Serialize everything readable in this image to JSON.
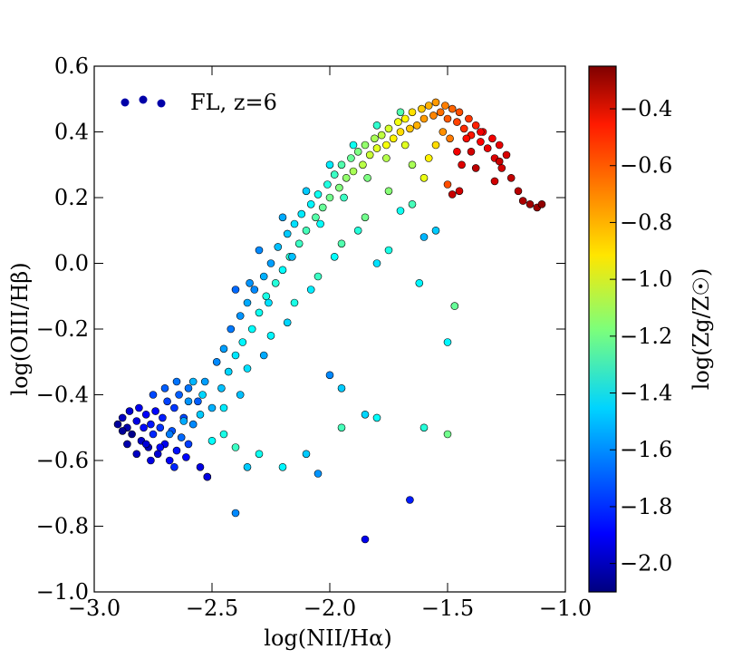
{
  "chart_data": {
    "type": "scatter",
    "xlabel": "log(NII/Hα)",
    "ylabel": "log(OIII/Hβ)",
    "xlim": [
      -3.0,
      -1.0
    ],
    "ylim": [
      -1.0,
      0.6
    ],
    "xticks": [
      "−3.0",
      "−2.5",
      "−2.0",
      "−1.5",
      "−1.0"
    ],
    "yticks": [
      "−1.0",
      "−0.8",
      "−0.6",
      "−0.4",
      "−0.2",
      "0.0",
      "0.2",
      "0.4",
      "0.6"
    ],
    "grid": false,
    "legend": {
      "label": "FL, z=6",
      "placement": "top-left"
    },
    "colorbar": {
      "label": "log(Zg/Z☉)",
      "range": [
        -2.1,
        -0.25
      ],
      "ticks": [
        "−2.0",
        "−1.8",
        "−1.6",
        "−1.4",
        "−1.2",
        "−1.0",
        "−0.8",
        "−0.6",
        "−0.4"
      ],
      "colormap": "jet"
    },
    "series": [
      {
        "points": [
          [
            -2.9,
            -0.49,
            -2.05
          ],
          [
            -2.88,
            -0.47,
            -1.98
          ],
          [
            -2.86,
            -0.5,
            -2.02
          ],
          [
            -2.85,
            -0.45,
            -1.95
          ],
          [
            -2.84,
            -0.52,
            -2.08
          ],
          [
            -2.82,
            -0.48,
            -1.92
          ],
          [
            -2.81,
            -0.44,
            -1.9
          ],
          [
            -2.8,
            -0.54,
            -1.97
          ],
          [
            -2.79,
            -0.5,
            -1.85
          ],
          [
            -2.78,
            -0.46,
            -1.88
          ],
          [
            -2.77,
            -0.56,
            -2.0
          ],
          [
            -2.76,
            -0.49,
            -1.83
          ],
          [
            -2.75,
            -0.52,
            -1.8
          ],
          [
            -2.74,
            -0.45,
            -1.86
          ],
          [
            -2.73,
            -0.58,
            -1.95
          ],
          [
            -2.72,
            -0.5,
            -1.78
          ],
          [
            -2.71,
            -0.47,
            -1.82
          ],
          [
            -2.7,
            -0.55,
            -1.9
          ],
          [
            -2.69,
            -0.42,
            -1.75
          ],
          [
            -2.68,
            -0.6,
            -1.88
          ],
          [
            -2.67,
            -0.51,
            -1.72
          ],
          [
            -2.66,
            -0.44,
            -1.77
          ],
          [
            -2.65,
            -0.57,
            -1.84
          ],
          [
            -2.64,
            -0.4,
            -1.7
          ],
          [
            -2.63,
            -0.53,
            -1.68
          ],
          [
            -2.62,
            -0.47,
            -1.74
          ],
          [
            -2.61,
            -0.59,
            -1.86
          ],
          [
            -2.6,
            -0.38,
            -1.66
          ],
          [
            -2.58,
            -0.49,
            -1.62
          ],
          [
            -2.56,
            -0.42,
            -1.7
          ],
          [
            -2.55,
            -0.62,
            -1.92
          ],
          [
            -2.53,
            -0.36,
            -1.58
          ],
          [
            -2.52,
            -0.65,
            -1.9
          ],
          [
            -2.5,
            -0.44,
            -1.55
          ],
          [
            -2.48,
            -0.3,
            -1.62
          ],
          [
            -2.46,
            -0.38,
            -1.52
          ],
          [
            -2.45,
            -0.26,
            -1.58
          ],
          [
            -2.43,
            -0.33,
            -1.48
          ],
          [
            -2.42,
            -0.2,
            -1.65
          ],
          [
            -2.4,
            -0.28,
            -1.45
          ],
          [
            -2.38,
            -0.16,
            -1.6
          ],
          [
            -2.37,
            -0.24,
            -1.42
          ],
          [
            -2.35,
            -0.12,
            -1.56
          ],
          [
            -2.33,
            -0.2,
            -1.4
          ],
          [
            -2.32,
            -0.08,
            -1.62
          ],
          [
            -2.3,
            -0.15,
            -1.38
          ],
          [
            -2.28,
            -0.04,
            -1.55
          ],
          [
            -2.27,
            -0.1,
            -1.36
          ],
          [
            -2.25,
            0.0,
            -1.58
          ],
          [
            -2.23,
            -0.06,
            -1.34
          ],
          [
            -2.22,
            0.05,
            -1.52
          ],
          [
            -2.2,
            -0.02,
            -1.4
          ],
          [
            -2.18,
            0.09,
            -1.5
          ],
          [
            -2.17,
            0.02,
            -1.32
          ],
          [
            -2.15,
            0.12,
            -1.46
          ],
          [
            -2.13,
            0.06,
            -1.3
          ],
          [
            -2.12,
            0.15,
            -1.44
          ],
          [
            -2.1,
            0.1,
            -1.28
          ],
          [
            -2.08,
            0.18,
            -1.42
          ],
          [
            -2.06,
            0.14,
            -1.25
          ],
          [
            -2.05,
            0.21,
            -1.38
          ],
          [
            -2.03,
            0.17,
            -1.22
          ],
          [
            -2.01,
            0.24,
            -1.35
          ],
          [
            -2.0,
            0.2,
            -1.2
          ],
          [
            -1.98,
            0.27,
            -1.3
          ],
          [
            -1.96,
            0.23,
            -1.17
          ],
          [
            -1.95,
            0.3,
            -1.26
          ],
          [
            -1.93,
            0.26,
            -1.14
          ],
          [
            -1.91,
            0.32,
            -1.22
          ],
          [
            -1.9,
            0.28,
            -1.1
          ],
          [
            -1.88,
            0.34,
            -1.18
          ],
          [
            -1.86,
            0.3,
            -1.07
          ],
          [
            -1.85,
            0.36,
            -1.14
          ],
          [
            -1.83,
            0.33,
            -1.04
          ],
          [
            -1.81,
            0.38,
            -1.1
          ],
          [
            -1.8,
            0.35,
            -1.0
          ],
          [
            -1.78,
            0.39,
            -1.06
          ],
          [
            -1.76,
            0.36,
            -0.96
          ],
          [
            -1.75,
            0.41,
            -1.02
          ],
          [
            -1.73,
            0.38,
            -0.92
          ],
          [
            -1.71,
            0.43,
            -0.97
          ],
          [
            -1.7,
            0.4,
            -0.88
          ],
          [
            -1.68,
            0.44,
            -0.93
          ],
          [
            -1.66,
            0.41,
            -0.84
          ],
          [
            -1.65,
            0.46,
            -0.89
          ],
          [
            -1.63,
            0.42,
            -0.8
          ],
          [
            -1.61,
            0.47,
            -0.85
          ],
          [
            -1.6,
            0.44,
            -0.76
          ],
          [
            -1.58,
            0.48,
            -0.8
          ],
          [
            -1.56,
            0.45,
            -0.72
          ],
          [
            -1.55,
            0.49,
            -0.76
          ],
          [
            -1.53,
            0.46,
            -0.68
          ],
          [
            -1.51,
            0.48,
            -0.71
          ],
          [
            -1.5,
            0.44,
            -0.64
          ],
          [
            -1.48,
            0.47,
            -0.66
          ],
          [
            -1.46,
            0.43,
            -0.6
          ],
          [
            -1.45,
            0.46,
            -0.62
          ],
          [
            -1.43,
            0.41,
            -0.56
          ],
          [
            -1.41,
            0.44,
            -0.58
          ],
          [
            -1.4,
            0.39,
            -0.52
          ],
          [
            -1.38,
            0.42,
            -0.54
          ],
          [
            -1.36,
            0.37,
            -0.48
          ],
          [
            -1.35,
            0.4,
            -0.5
          ],
          [
            -1.33,
            0.35,
            -0.45
          ],
          [
            -1.31,
            0.38,
            -0.46
          ],
          [
            -1.3,
            0.32,
            -0.42
          ],
          [
            -1.28,
            0.36,
            -0.44
          ],
          [
            -1.27,
            0.29,
            -0.4
          ],
          [
            -1.25,
            0.33,
            -0.41
          ],
          [
            -1.23,
            0.26,
            -0.37
          ],
          [
            -1.2,
            0.22,
            -0.35
          ],
          [
            -1.18,
            0.19,
            -0.33
          ],
          [
            -1.15,
            0.18,
            -0.31
          ],
          [
            -1.12,
            0.17,
            -0.3
          ],
          [
            -1.1,
            0.18,
            -0.28
          ],
          [
            -2.4,
            -0.08,
            -1.68
          ],
          [
            -2.3,
            0.04,
            -1.62
          ],
          [
            -2.2,
            0.14,
            -1.56
          ],
          [
            -2.1,
            0.22,
            -1.5
          ],
          [
            -2.0,
            0.3,
            -1.44
          ],
          [
            -1.9,
            0.36,
            -1.38
          ],
          [
            -1.8,
            0.42,
            -1.32
          ],
          [
            -1.7,
            0.46,
            -1.26
          ],
          [
            -2.35,
            -0.32,
            -1.46
          ],
          [
            -2.25,
            -0.22,
            -1.42
          ],
          [
            -2.15,
            -0.12,
            -1.36
          ],
          [
            -2.05,
            -0.04,
            -1.3
          ],
          [
            -1.95,
            0.06,
            -1.26
          ],
          [
            -1.85,
            0.14,
            -1.2
          ],
          [
            -1.75,
            0.22,
            -1.16
          ],
          [
            -1.65,
            0.3,
            -1.1
          ],
          [
            -2.5,
            -0.54,
            -1.4
          ],
          [
            -2.45,
            -0.52,
            -1.36
          ],
          [
            -2.4,
            -0.56,
            -1.3
          ],
          [
            -2.35,
            -0.62,
            -1.5
          ],
          [
            -2.3,
            -0.58,
            -1.38
          ],
          [
            -2.2,
            -0.62,
            -1.42
          ],
          [
            -2.1,
            -0.58,
            -1.5
          ],
          [
            -2.05,
            -0.64,
            -1.6
          ],
          [
            -1.95,
            -0.5,
            -1.28
          ],
          [
            -1.95,
            -0.38,
            -1.5
          ],
          [
            -2.0,
            -0.34,
            -1.62
          ],
          [
            -1.85,
            -0.46,
            -1.48
          ],
          [
            -1.8,
            -0.47,
            -1.4
          ],
          [
            -1.6,
            -0.5,
            -1.34
          ],
          [
            -1.5,
            -0.52,
            -1.2
          ],
          [
            -1.5,
            -0.24,
            -1.42
          ],
          [
            -1.47,
            -0.13,
            -1.22
          ],
          [
            -1.66,
            -0.72,
            -1.82
          ],
          [
            -1.85,
            -0.84,
            -1.9
          ],
          [
            -2.4,
            -0.76,
            -1.62
          ],
          [
            -2.52,
            -0.65,
            -1.92
          ],
          [
            -1.6,
            0.08,
            -1.54
          ],
          [
            -1.62,
            -0.06,
            -1.42
          ],
          [
            -1.55,
            0.1,
            -1.5
          ],
          [
            -1.7,
            0.16,
            -1.38
          ],
          [
            -1.75,
            0.04,
            -1.36
          ],
          [
            -1.8,
            0.0,
            -1.46
          ],
          [
            -1.65,
            0.18,
            -1.28
          ],
          [
            -2.55,
            -0.46,
            -1.5
          ],
          [
            -2.45,
            -0.44,
            -1.44
          ],
          [
            -2.38,
            -0.4,
            -1.52
          ],
          [
            -2.28,
            -0.28,
            -1.56
          ],
          [
            -2.18,
            -0.18,
            -1.48
          ],
          [
            -2.08,
            -0.08,
            -1.44
          ],
          [
            -1.98,
            0.02,
            -1.4
          ],
          [
            -1.88,
            0.1,
            -1.34
          ],
          [
            -1.6,
            0.26,
            -0.98
          ],
          [
            -1.58,
            0.32,
            -0.92
          ],
          [
            -1.55,
            0.36,
            -0.88
          ],
          [
            -1.52,
            0.4,
            -0.74
          ],
          [
            -1.49,
            0.38,
            -0.7
          ],
          [
            -1.46,
            0.34,
            -0.46
          ],
          [
            -1.44,
            0.3,
            -0.42
          ],
          [
            -1.42,
            0.38,
            -0.5
          ],
          [
            -1.4,
            0.34,
            -0.4
          ],
          [
            -1.38,
            0.29,
            -0.36
          ],
          [
            -1.36,
            0.4,
            -0.46
          ],
          [
            -1.5,
            0.24,
            -0.62
          ],
          [
            -1.48,
            0.21,
            -0.38
          ],
          [
            -1.45,
            0.22,
            -0.4
          ],
          [
            -1.3,
            0.25,
            -0.4
          ],
          [
            -1.28,
            0.31,
            -0.38
          ],
          [
            -2.75,
            -0.4,
            -1.74
          ],
          [
            -2.7,
            -0.38,
            -1.7
          ],
          [
            -2.65,
            -0.36,
            -1.66
          ],
          [
            -2.6,
            -0.42,
            -1.6
          ],
          [
            -2.58,
            -0.36,
            -1.54
          ],
          [
            -2.54,
            -0.4,
            -1.48
          ],
          [
            -2.62,
            -0.48,
            -1.56
          ],
          [
            -2.68,
            -0.52,
            -1.64
          ],
          [
            -2.78,
            -0.55,
            -1.94
          ],
          [
            -2.82,
            -0.58,
            -1.98
          ],
          [
            -2.86,
            -0.55,
            -2.02
          ],
          [
            -2.88,
            -0.51,
            -2.06
          ],
          [
            -2.76,
            -0.6,
            -1.92
          ],
          [
            -2.72,
            -0.56,
            -1.86
          ],
          [
            -2.66,
            -0.62,
            -1.8
          ],
          [
            -2.6,
            -0.55,
            -1.76
          ],
          [
            -2.34,
            -0.06,
            -1.6
          ],
          [
            -2.26,
            -0.12,
            -1.46
          ],
          [
            -2.16,
            0.02,
            -1.52
          ],
          [
            -2.04,
            0.12,
            -1.4
          ],
          [
            -1.94,
            0.2,
            -1.3
          ],
          [
            -1.84,
            0.26,
            -1.18
          ],
          [
            -1.76,
            0.32,
            -1.08
          ],
          [
            -1.68,
            0.36,
            -1.0
          ]
        ]
      }
    ]
  }
}
